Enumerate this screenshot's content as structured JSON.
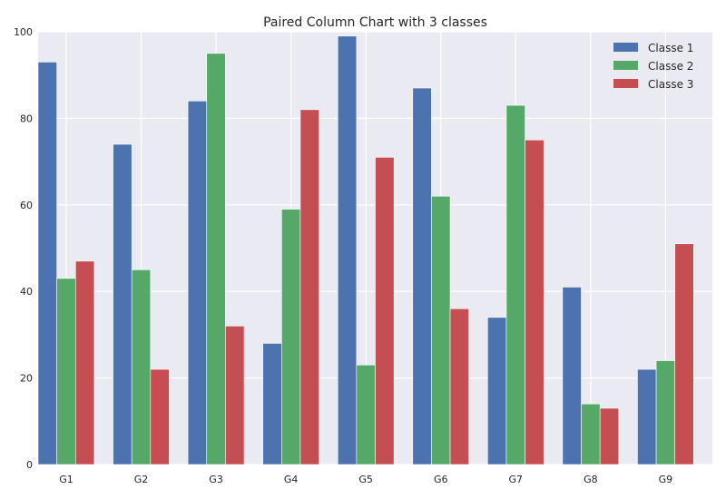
{
  "chart_data": {
    "type": "bar",
    "title": "Paired Column Chart with 3 classes",
    "xlabel": "",
    "ylabel": "",
    "categories": [
      "G1",
      "G2",
      "G3",
      "G4",
      "G5",
      "G6",
      "G7",
      "G8",
      "G9"
    ],
    "series": [
      {
        "name": "Classe 1",
        "color": "#4C72B0",
        "values": [
          93,
          74,
          84,
          28,
          99,
          87,
          34,
          41,
          22
        ]
      },
      {
        "name": "Classe 2",
        "color": "#55A868",
        "values": [
          43,
          45,
          95,
          59,
          23,
          62,
          83,
          14,
          24
        ]
      },
      {
        "name": "Classe 3",
        "color": "#C44E52",
        "values": [
          47,
          22,
          32,
          82,
          71,
          36,
          75,
          13,
          51
        ]
      }
    ],
    "ylim": [
      0,
      100
    ],
    "yticks": [
      0,
      20,
      40,
      60,
      80,
      100
    ],
    "grid": true,
    "legend_position": "top-right",
    "background_color": "#EAEAF2"
  }
}
